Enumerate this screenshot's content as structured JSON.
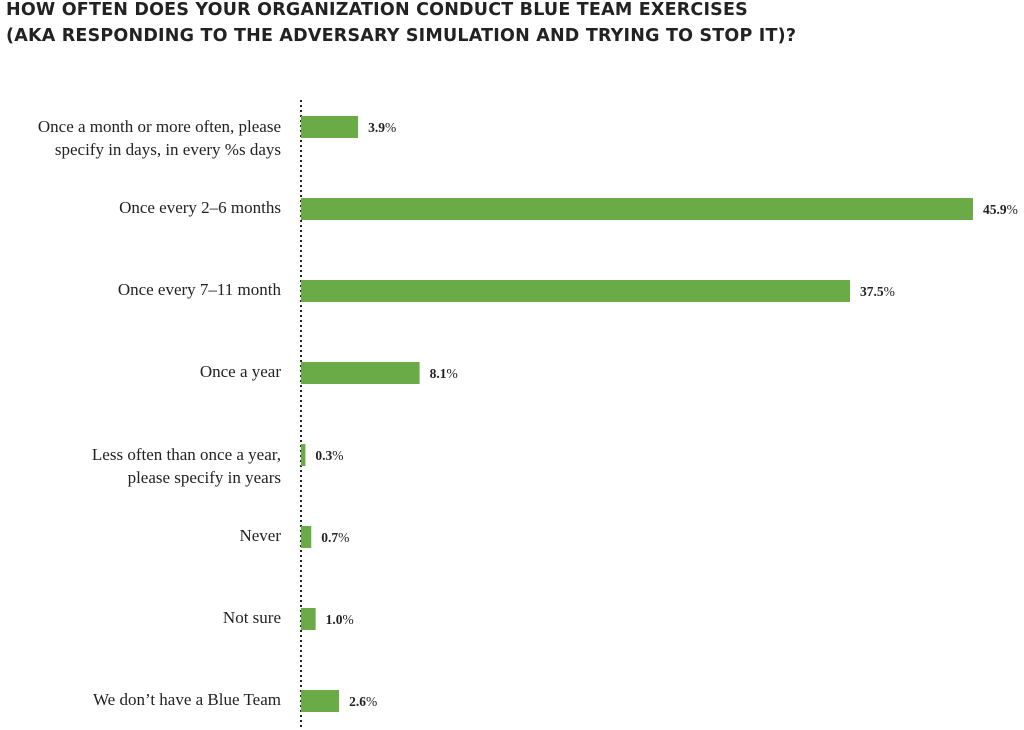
{
  "chart_data": {
    "type": "bar",
    "orientation": "horizontal",
    "title": "HOW OFTEN DOES YOUR ORGANIZATION CONDUCT BLUE TEAM EXERCISES",
    "subtitle": "(AKA RESPONDING TO THE ADVERSARY SIMULATION AND TRYING TO STOP IT)?",
    "categories": [
      [
        "Once a month or more often, please",
        "specify in  days, in every %s days"
      ],
      [
        "Once every 2–6 months"
      ],
      [
        "Once every 7–11 month"
      ],
      [
        "Once a year"
      ],
      [
        "Less often than once a year,",
        "please specify in years"
      ],
      [
        "Never"
      ],
      [
        "Not sure"
      ],
      [
        "We don’t have a Blue Team"
      ]
    ],
    "values": [
      3.9,
      45.9,
      37.5,
      8.1,
      0.3,
      0.7,
      1.0,
      2.6
    ],
    "value_labels": [
      "3.9",
      "45.9",
      "37.5",
      "8.1",
      "0.3",
      "0.7",
      "1.0",
      "2.6"
    ],
    "value_suffix": "%",
    "xlim": [
      0,
      45.9
    ],
    "grid": false,
    "bar_color": "#6aaa47",
    "axis_color": "#222222"
  }
}
